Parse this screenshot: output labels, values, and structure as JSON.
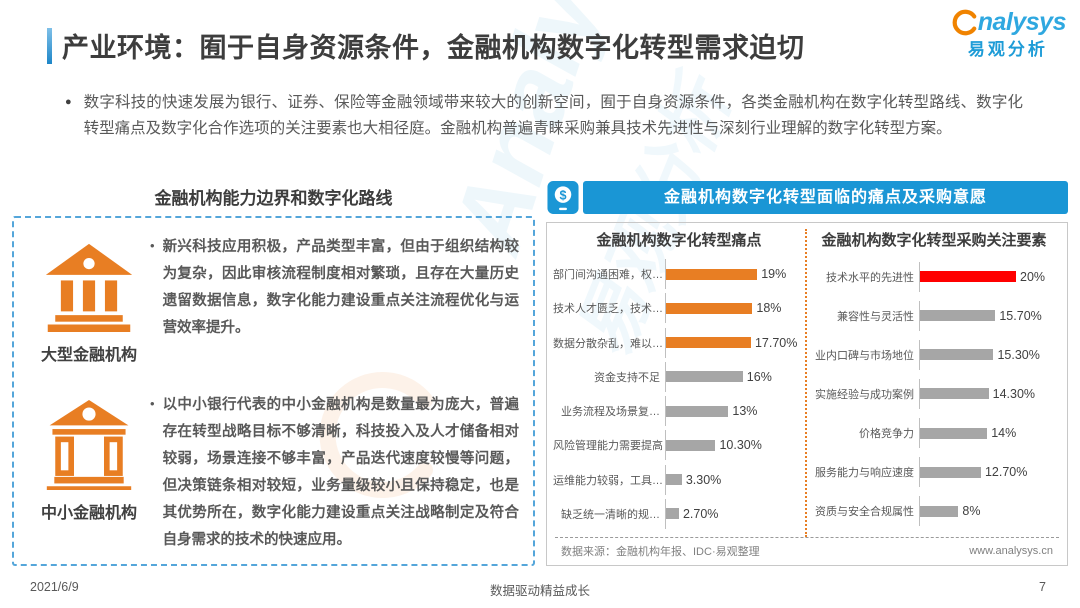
{
  "header": {
    "title": "产业环境：囿于自身资源条件，金融机构数字化转型需求迫切",
    "logo": {
      "text": "nalysys",
      "cn": "易观分析"
    }
  },
  "intro": {
    "bullet": "●",
    "text": "数字科技的快速发展为银行、证券、保险等金融领域带来较大的创新空间，囿于自身资源条件，各类金融机构在数字化转型路线、数字化转型痛点及数字化合作选项的关注要素也大相径庭。金融机构普遍青睐采购兼具技术先进性与深刻行业理解的数字化转型方案。"
  },
  "left_panel": {
    "title": "金融机构能力边界和数字化路线",
    "items": [
      {
        "bullet": "•",
        "label": "大型金融机构",
        "text": "新兴科技应用积极，产品类型丰富，但由于组织结构较为复杂，因此审核流程制度相对繁琐，且存在大量历史遗留数据信息，数字化能力建设重点关注流程优化与运营效率提升。"
      },
      {
        "bullet": "•",
        "label": "中小金融机构",
        "text": "以中小银行代表的中小金融机构是数量最为庞大，普遍存在转型战略目标不够清晰，科技投入及人才储备相对较弱，场景连接不够丰富，产品迭代速度较慢等问题，但决策链条相对较短，业务量级较小且保持稳定，也是其优势所在，数字化能力建设重点关注战略制定及符合自身需求的技术的快速应用。"
      }
    ]
  },
  "right_panel": {
    "banner": "金融机构数字化转型面临的痛点及采购意愿",
    "source": "数据来源：金融机构年报、IDC·易观整理",
    "website": "www.analysys.cn"
  },
  "chart_data": [
    {
      "type": "bar",
      "orientation": "horizontal",
      "title": "金融机构数字化转型痛点",
      "categories": [
        "部门间沟通困难，权…",
        "技术人才匮乏，技术…",
        "数据分散杂乱，难以…",
        "资金支持不足",
        "业务流程及场景复…",
        "风险管理能力需要提高",
        "运维能力较弱，工具…",
        "缺乏统一清晰的规…"
      ],
      "values": [
        19,
        18,
        17.7,
        16,
        13,
        10.3,
        3.3,
        2.7
      ],
      "value_labels": [
        "19%",
        "18%",
        "17.70%",
        "16%",
        "13%",
        "10.30%",
        "3.30%",
        "2.70%"
      ],
      "bar_colors": [
        "#E87E23",
        "#E87E23",
        "#E87E23",
        "#A6A6A6",
        "#A6A6A6",
        "#A6A6A6",
        "#A6A6A6",
        "#A6A6A6"
      ],
      "xlim": [
        0,
        20
      ],
      "grid": false,
      "legend": false
    },
    {
      "type": "bar",
      "orientation": "horizontal",
      "title": "金融机构数字化转型采购关注要素",
      "categories": [
        "技术水平的先进性",
        "兼容性与灵活性",
        "业内口碑与市场地位",
        "实施经验与成功案例",
        "价格竞争力",
        "服务能力与响应速度",
        "资质与安全合规属性"
      ],
      "values": [
        20,
        15.7,
        15.3,
        14.3,
        14,
        12.7,
        8
      ],
      "value_labels": [
        "20%",
        "15.70%",
        "15.30%",
        "14.30%",
        "14%",
        "12.70%",
        "8%"
      ],
      "bar_colors": [
        "#FF0000",
        "#A6A6A6",
        "#A6A6A6",
        "#A6A6A6",
        "#A6A6A6",
        "#A6A6A6",
        "#A6A6A6"
      ],
      "xlim": [
        0,
        20
      ],
      "grid": false,
      "legend": false
    }
  ],
  "watermark": {
    "line1": "Analysys",
    "line2": "易观分析"
  },
  "footer": {
    "date": "2021/6/9",
    "center": "数据驱动精益成长",
    "page": "7"
  },
  "colors": {
    "banner_blue": "#1A96D5",
    "dashed_border_blue": "#54A6DA",
    "orange": "#E87E23",
    "red": "#FF0000",
    "gray_bar": "#A6A6A6",
    "divider_orange_dotted": "#E87E23"
  }
}
